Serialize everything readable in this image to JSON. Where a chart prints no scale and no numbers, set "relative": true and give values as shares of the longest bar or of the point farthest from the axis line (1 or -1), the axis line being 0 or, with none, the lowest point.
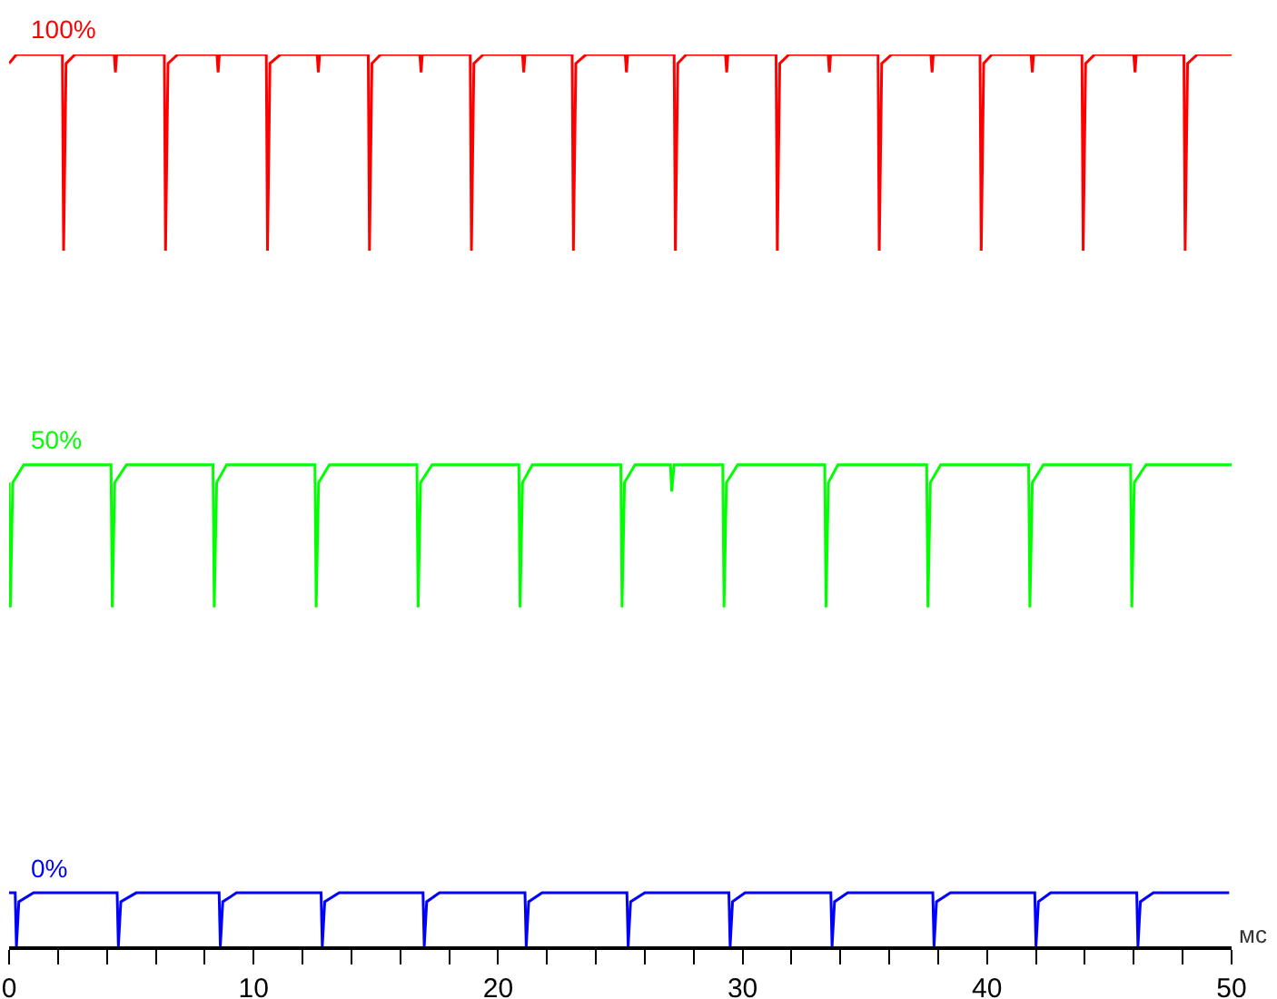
{
  "chart_data": {
    "type": "line",
    "relative": true,
    "xlabel": "мс",
    "xlim": [
      0,
      50
    ],
    "xticks": [
      0,
      {
        "value": 2,
        "label": null
      },
      {
        "value": 4,
        "label": null
      },
      {
        "value": 6,
        "label": null
      },
      {
        "value": 8,
        "label": null
      },
      10,
      {
        "value": 12,
        "label": null
      },
      {
        "value": 14,
        "label": null
      },
      {
        "value": 16,
        "label": null
      },
      {
        "value": 18,
        "label": null
      },
      20,
      {
        "value": 22,
        "label": null
      },
      {
        "value": 24,
        "label": null
      },
      {
        "value": 26,
        "label": null
      },
      {
        "value": 28,
        "label": null
      },
      30,
      {
        "value": 32,
        "label": null
      },
      {
        "value": 34,
        "label": null
      },
      {
        "value": 36,
        "label": null
      },
      {
        "value": 38,
        "label": null
      },
      40,
      {
        "value": 42,
        "label": null
      },
      {
        "value": 44,
        "label": null
      },
      {
        "value": 46,
        "label": null
      },
      {
        "value": 48,
        "label": null
      },
      50
    ],
    "series": [
      {
        "name": "100%",
        "color": "#ff0000",
        "x": [
          0,
          0.3,
          2.18,
          2.23,
          2.33,
          2.7,
          4.3,
          4.35,
          4.4,
          6.35,
          6.4,
          6.5,
          6.9,
          8.5,
          8.55,
          8.6,
          10.52,
          10.57,
          10.67,
          11.1,
          12.6,
          12.65,
          12.7,
          14.69,
          14.74,
          14.84,
          15.2,
          16.8,
          16.85,
          16.9,
          18.86,
          18.91,
          19.01,
          19.4,
          21,
          21.05,
          21.1,
          23.03,
          23.08,
          23.18,
          23.6,
          25.2,
          25.25,
          25.3,
          27.2,
          27.25,
          27.35,
          27.7,
          29.3,
          29.35,
          29.4,
          31.37,
          31.42,
          31.52,
          31.9,
          33.5,
          33.55,
          33.6,
          35.54,
          35.59,
          35.69,
          36.1,
          37.7,
          37.75,
          37.8,
          39.71,
          39.76,
          39.86,
          40.2,
          41.8,
          41.85,
          41.9,
          43.88,
          43.93,
          44.03,
          44.4,
          46,
          46.05,
          46.1,
          48.05,
          48.1,
          48.2,
          48.6,
          50
        ],
        "values": [
          0.99,
          1,
          1,
          0.78,
          0.99,
          1,
          1,
          0.98,
          1,
          1,
          0.78,
          0.99,
          1,
          1,
          0.98,
          1,
          1,
          0.78,
          0.99,
          1,
          1,
          0.98,
          1,
          1,
          0.78,
          0.99,
          1,
          1,
          0.98,
          1,
          1,
          0.78,
          0.99,
          1,
          1,
          0.98,
          1,
          1,
          0.78,
          0.99,
          1,
          1,
          0.98,
          1,
          1,
          0.78,
          0.99,
          1,
          1,
          0.98,
          1,
          1,
          0.78,
          0.99,
          1,
          1,
          0.98,
          1,
          1,
          0.78,
          0.99,
          1,
          1,
          0.98,
          1,
          1,
          0.78,
          0.99,
          1,
          1,
          0.98,
          1,
          1,
          0.78,
          0.99,
          1,
          1,
          0.98,
          1,
          1,
          0.78,
          0.99,
          1,
          1
        ]
      },
      {
        "name": "50%",
        "color": "#00ff00",
        "x": [
          0,
          0.05,
          0.15,
          0.6,
          4.17,
          4.22,
          4.32,
          4.8,
          8.34,
          8.39,
          8.49,
          8.9,
          12.51,
          12.56,
          12.66,
          13.1,
          16.68,
          16.73,
          16.83,
          17.3,
          20.85,
          20.9,
          21,
          21.4,
          25.02,
          25.07,
          25.17,
          25.6,
          27.05,
          27.1,
          27.2,
          29.19,
          29.24,
          29.34,
          29.8,
          33.36,
          33.41,
          33.51,
          33.9,
          37.53,
          37.58,
          37.68,
          38.1,
          41.7,
          41.75,
          41.85,
          42.3,
          45.87,
          45.92,
          46.02,
          46.5,
          50
        ],
        "values": [
          0.52,
          0.38,
          0.52,
          0.54,
          0.54,
          0.38,
          0.52,
          0.54,
          0.54,
          0.38,
          0.52,
          0.54,
          0.54,
          0.38,
          0.52,
          0.54,
          0.54,
          0.38,
          0.52,
          0.54,
          0.54,
          0.38,
          0.52,
          0.54,
          0.54,
          0.38,
          0.52,
          0.54,
          0.54,
          0.51,
          0.54,
          0.54,
          0.38,
          0.52,
          0.54,
          0.54,
          0.38,
          0.52,
          0.54,
          0.54,
          0.38,
          0.52,
          0.54,
          0.54,
          0.38,
          0.52,
          0.54,
          0.54,
          0.38,
          0.52,
          0.54,
          0.54
        ]
      },
      {
        "name": "0%",
        "color": "#0000ff",
        "x": [
          0,
          0.25,
          0.3,
          0.4,
          1,
          4.42,
          4.47,
          4.57,
          5.2,
          8.59,
          8.64,
          8.74,
          9.3,
          12.76,
          12.81,
          12.91,
          13.5,
          16.93,
          16.98,
          17.08,
          17.6,
          21.1,
          21.15,
          21.25,
          21.8,
          25.27,
          25.32,
          25.42,
          26,
          29.44,
          29.49,
          29.59,
          30.1,
          33.61,
          33.66,
          33.76,
          34.3,
          37.78,
          37.83,
          37.93,
          38.5,
          41.95,
          42,
          42.1,
          42.6,
          46.12,
          46.17,
          46.27,
          46.8,
          49.9
        ],
        "values": [
          0.06,
          0.06,
          0,
          0.05,
          0.06,
          0.06,
          0,
          0.05,
          0.06,
          0.06,
          0,
          0.05,
          0.06,
          0.06,
          0,
          0.05,
          0.06,
          0.06,
          0,
          0.05,
          0.06,
          0.06,
          0,
          0.05,
          0.06,
          0.06,
          0,
          0.05,
          0.06,
          0.06,
          0,
          0.05,
          0.06,
          0.06,
          0,
          0.05,
          0.06,
          0.06,
          0,
          0.05,
          0.06,
          0.06,
          0,
          0.05,
          0.06,
          0.06,
          0,
          0.05,
          0.06,
          0.06
        ]
      }
    ]
  }
}
